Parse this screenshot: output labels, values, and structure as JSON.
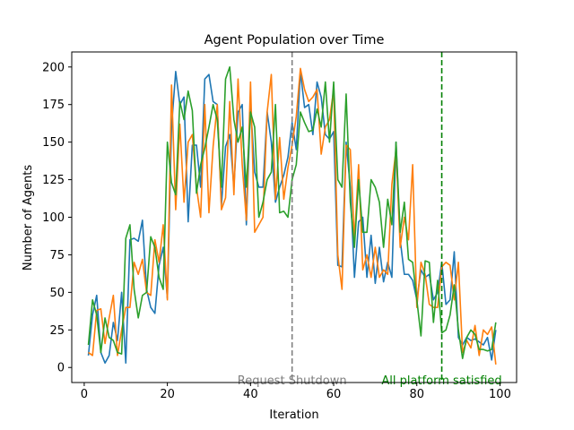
{
  "chart_data": {
    "type": "line",
    "title": "Agent Population over Time",
    "xlabel": "Iteration",
    "ylabel": "Number of Agents",
    "xlim": [
      -3,
      104
    ],
    "ylim": [
      -10,
      210
    ],
    "xticks": [
      0,
      20,
      40,
      60,
      80,
      100
    ],
    "yticks": [
      0,
      25,
      50,
      75,
      100,
      125,
      150,
      175,
      200
    ],
    "grid": false,
    "legend": "none",
    "x": [
      1,
      2,
      3,
      4,
      5,
      6,
      7,
      8,
      9,
      10,
      11,
      12,
      13,
      14,
      15,
      16,
      17,
      18,
      19,
      20,
      21,
      22,
      23,
      24,
      25,
      26,
      27,
      28,
      29,
      30,
      31,
      32,
      33,
      34,
      35,
      36,
      37,
      38,
      39,
      40,
      41,
      42,
      43,
      44,
      45,
      46,
      47,
      48,
      49,
      50,
      51,
      52,
      53,
      54,
      55,
      56,
      57,
      58,
      59,
      60,
      61,
      62,
      63,
      64,
      65,
      66,
      67,
      68,
      69,
      70,
      71,
      72,
      73,
      74,
      75,
      76,
      77,
      78,
      79,
      80,
      81,
      82,
      83,
      84,
      85,
      86,
      87,
      88,
      89,
      90,
      91,
      92,
      93,
      94,
      95,
      96,
      97,
      98,
      99
    ],
    "series": [
      {
        "color": "#1f77b4",
        "values": [
          8,
          35,
          48,
          10,
          3,
          8,
          30,
          18,
          50,
          3,
          85,
          86,
          84,
          98,
          52,
          40,
          36,
          68,
          80,
          46,
          160,
          197,
          175,
          180,
          97,
          148,
          148,
          120,
          192,
          195,
          177,
          175,
          108,
          147,
          155,
          120,
          170,
          175,
          95,
          175,
          130,
          120,
          120,
          170,
          150,
          110,
          120,
          128,
          140,
          163,
          145,
          197,
          173,
          175,
          155,
          190,
          180,
          155,
          152,
          157,
          68,
          67,
          150,
          120,
          60,
          97,
          100,
          60,
          88,
          56,
          80,
          57,
          70,
          60,
          150,
          85,
          62,
          62,
          58,
          45,
          65,
          60,
          62,
          45,
          50,
          70,
          42,
          45,
          77,
          20,
          15,
          20,
          18,
          19,
          17,
          15,
          20,
          5,
          25
        ]
      },
      {
        "color": "#ff7f0e",
        "values": [
          10,
          8,
          38,
          39,
          16,
          33,
          48,
          8,
          25,
          40,
          40,
          70,
          62,
          72,
          50,
          48,
          85,
          70,
          95,
          45,
          188,
          105,
          162,
          110,
          150,
          155,
          120,
          100,
          175,
          103,
          147,
          175,
          105,
          113,
          177,
          115,
          192,
          135,
          98,
          190,
          90,
          95,
          100,
          170,
          195,
          112,
          153,
          112,
          133,
          148,
          167,
          199,
          185,
          177,
          180,
          185,
          142,
          160,
          165,
          185,
          75,
          52,
          148,
          145,
          85,
          135,
          65,
          75,
          60,
          80,
          60,
          65,
          62,
          122,
          145,
          80,
          100,
          85,
          135,
          40,
          70,
          62,
          42,
          40,
          40,
          67,
          70,
          68,
          45,
          70,
          10,
          18,
          13,
          28,
          8,
          25,
          22,
          27,
          2
        ]
      },
      {
        "color": "#2ca02c",
        "values": [
          15,
          45,
          35,
          10,
          33,
          20,
          18,
          10,
          9,
          86,
          95,
          52,
          33,
          48,
          50,
          87,
          80,
          60,
          52,
          150,
          123,
          115,
          177,
          165,
          184,
          171,
          116,
          135,
          146,
          160,
          175,
          165,
          120,
          192,
          200,
          165,
          150,
          160,
          120,
          170,
          160,
          100,
          110,
          125,
          130,
          175,
          103,
          104,
          100,
          125,
          135,
          170,
          163,
          157,
          158,
          172,
          160,
          190,
          150,
          190,
          125,
          120,
          182,
          110,
          80,
          125,
          90,
          90,
          125,
          120,
          110,
          80,
          112,
          95,
          150,
          90,
          110,
          72,
          70,
          45,
          21,
          71,
          70,
          30,
          58,
          23,
          25,
          35,
          55,
          25,
          6,
          20,
          25,
          22,
          12,
          12,
          11,
          12,
          30
        ]
      }
    ],
    "vlines": [
      {
        "x": 50,
        "color": "#808080",
        "label": "Request Shutdown"
      },
      {
        "x": 86,
        "color": "#008000",
        "label": "All platform satisfied"
      }
    ]
  }
}
